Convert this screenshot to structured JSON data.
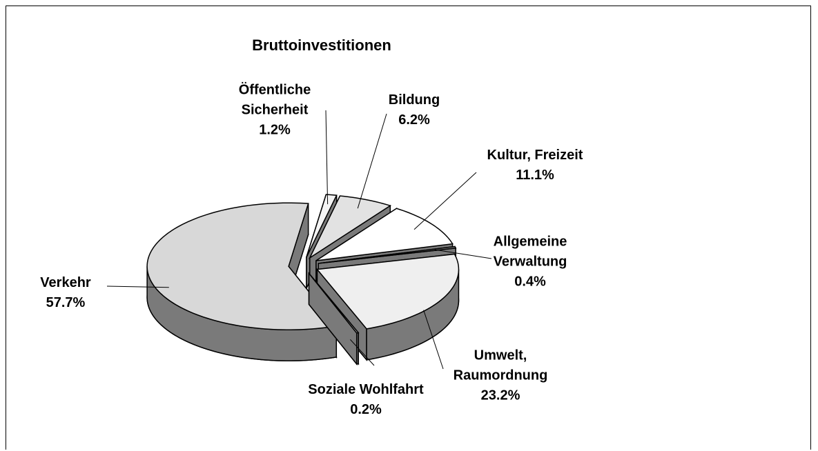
{
  "chart_data": {
    "type": "pie",
    "title": "Bruttoinvestitionen",
    "categories": [
      "Öffentliche\nSicherheit",
      "Bildung",
      "Kultur, Freizeit",
      "Allgemeine\nVerwaltung",
      "Umwelt,\nRaumordnung",
      "Soziale Wohlfahrt",
      "Verkehr"
    ],
    "values": [
      1.2,
      6.2,
      11.1,
      0.4,
      23.2,
      0.2,
      57.7
    ],
    "value_labels": [
      "1.2%",
      "6.2%",
      "11.1%",
      "0.4%",
      "23.2%",
      "0.2%",
      "57.7%"
    ],
    "colors": [
      "#f4f4f4",
      "#e2e2e2",
      "#ffffff",
      "#9a9a9a",
      "#efefef",
      "#cfcfcf",
      "#d8d8d8"
    ]
  }
}
